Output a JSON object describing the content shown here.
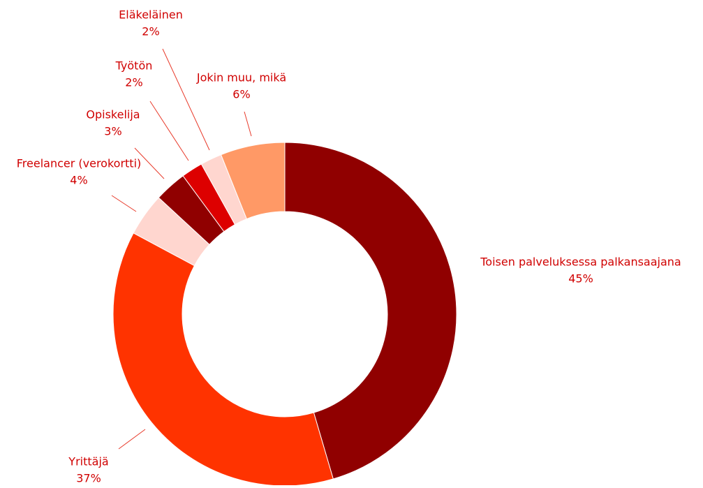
{
  "chart_data": {
    "type": "donut",
    "categories": [
      "Toisen palveluksessa palkansaajana",
      "Yrittäjä",
      "Freelancer (verokortti)",
      "Opiskelija",
      "Työtön",
      "Eläkeläinen",
      "Jokin muu, mikä"
    ],
    "values": [
      45,
      37,
      4,
      3,
      2,
      2,
      6
    ],
    "value_labels": [
      "45%",
      "37%",
      "4%",
      "3%",
      "2%",
      "2%",
      "6%"
    ],
    "colors": [
      "#900000",
      "#ff3300",
      "#ffd6cf",
      "#900000",
      "#dd0000",
      "#ffd6cf",
      "#ff9966"
    ]
  }
}
